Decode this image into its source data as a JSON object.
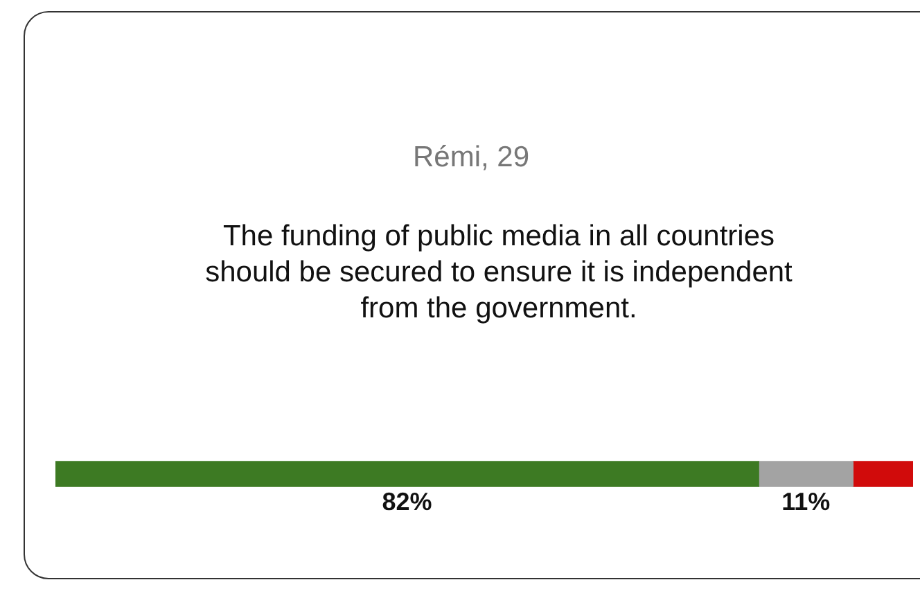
{
  "chart_data": {
    "type": "bar",
    "orientation": "horizontal",
    "stacked": true,
    "title": "Rémi, 29",
    "subtitle": "The funding of public media in all countries should be secured to ensure it is independent from the government.",
    "categories": [
      null
    ],
    "series": [
      {
        "color": "#3d7a23",
        "values": [
          82
        ],
        "value_labels": [
          "82%"
        ]
      },
      {
        "color": "#a3a3a3",
        "values": [
          11
        ],
        "value_labels": [
          "11%"
        ]
      },
      {
        "color": "#d10b0b",
        "values": [
          7
        ],
        "value_labels": [
          null
        ]
      }
    ],
    "legend": false
  }
}
